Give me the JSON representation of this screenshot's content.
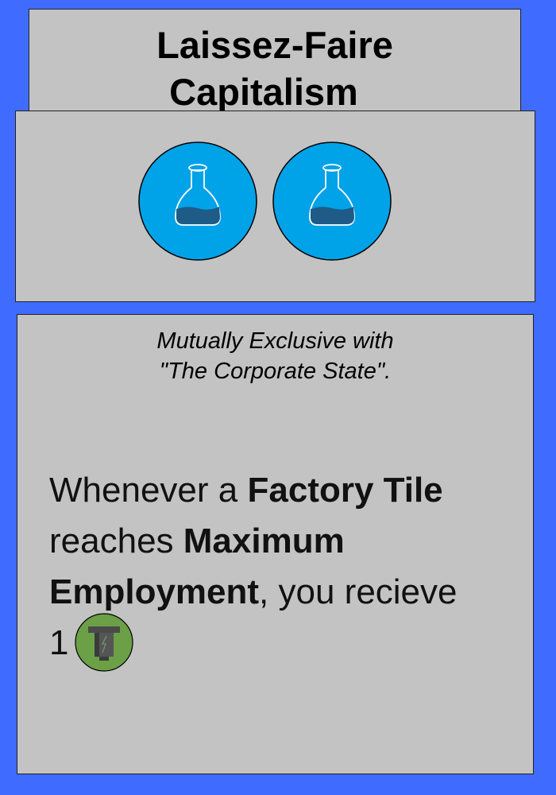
{
  "card": {
    "title_line1": "Laissez-Faire",
    "title_line2": "Capitalism",
    "cost": [
      {
        "icon": "flask-icon",
        "color": "#00a2e8"
      },
      {
        "icon": "flask-icon",
        "color": "#00a2e8"
      }
    ],
    "exclusive_line1": "Mutually Exclusive with",
    "exclusive_line2": "\"The Corporate State\".",
    "effect": {
      "part1": "Whenever a ",
      "factory_tile": "Factory Tile",
      "part2": " reaches ",
      "max_employment": "Maximum Employment",
      "part3": ", you recieve",
      "reward_amount": "1",
      "reward_icon": "bolt-icon",
      "reward_color": "#6ba046"
    }
  },
  "colors": {
    "background": "#3f6cff",
    "panel": "#c3c3c3",
    "flask_token": "#00a2e8",
    "reward_token": "#6ba046"
  }
}
